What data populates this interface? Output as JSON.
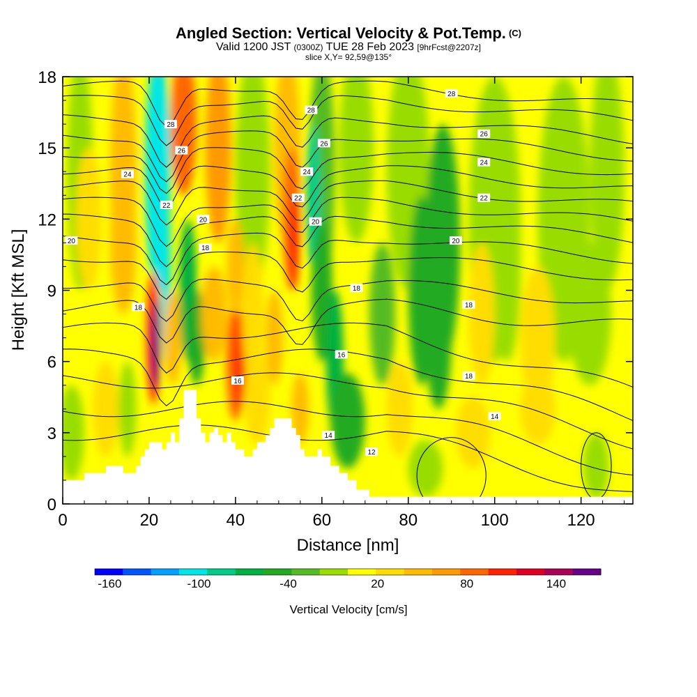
{
  "chart_data": {
    "type": "heatmap",
    "title": "Angled Section: Vertical Velocity & Pot.Temp.",
    "title_units": "(C)",
    "subtitle_main": "Valid 1200 JST",
    "subtitle_zulu": "(0300Z)",
    "subtitle_date": "TUE 28 Feb 2023",
    "subtitle_fcst": "[9hrFcst@2207z]",
    "subtitle2": "slice X,Y= 92,59@135°",
    "xlabel": "Distance [nm]",
    "ylabel": "Height [Kft MSL]",
    "xlim": [
      0,
      132
    ],
    "ylim": [
      0,
      18
    ],
    "x_ticks": [
      0,
      20,
      40,
      60,
      80,
      100,
      120
    ],
    "y_ticks": [
      0,
      3,
      6,
      9,
      12,
      15,
      18
    ],
    "colorbar_label": "Vertical Velocity [cm/s]",
    "colorbar_ticks": [
      -160,
      -100,
      -40,
      20,
      80,
      140
    ],
    "colorbar_range": [
      -170,
      170
    ],
    "colorbar_colors": [
      "#0000ff",
      "#0055ff",
      "#00a0ff",
      "#00e6e6",
      "#00cc88",
      "#00b040",
      "#22aa22",
      "#55bb22",
      "#99dd00",
      "#ffff00",
      "#ffdd00",
      "#ffbb00",
      "#ff9900",
      "#ff6600",
      "#ff2200",
      "#dd0022",
      "#aa0055",
      "#660088"
    ],
    "terrain": {
      "x": [
        0,
        4,
        5,
        9,
        10,
        13,
        14,
        16,
        17,
        18,
        19,
        20,
        21,
        22,
        23,
        24,
        25,
        26,
        27,
        28,
        29,
        31,
        32,
        33,
        34,
        35,
        36,
        37,
        38,
        39,
        40,
        42,
        43,
        44,
        45,
        46,
        47,
        48,
        49,
        50,
        52,
        53,
        54,
        55,
        56,
        58,
        59,
        60,
        62,
        64,
        66,
        67,
        68,
        70,
        71,
        72,
        132
      ],
      "y": [
        1.0,
        1.0,
        1.3,
        1.3,
        1.6,
        1.6,
        1.3,
        1.3,
        1.6,
        2.0,
        2.3,
        2.6,
        2.6,
        2.6,
        2.3,
        2.6,
        3.0,
        2.6,
        3.6,
        4.8,
        4.8,
        3.6,
        3.0,
        2.6,
        3.0,
        3.2,
        2.9,
        2.6,
        3.0,
        2.6,
        2.3,
        2.0,
        2.0,
        2.3,
        2.6,
        2.6,
        2.9,
        3.2,
        3.6,
        3.6,
        3.6,
        3.2,
        2.9,
        2.3,
        2.0,
        2.0,
        2.3,
        2.0,
        1.6,
        1.3,
        1.0,
        1.0,
        0.6,
        0.6,
        0.3,
        0.3,
        0.3
      ]
    },
    "pot_temp_labels": [
      {
        "text": "28",
        "x": 25.0,
        "y": 16.0
      },
      {
        "text": "26",
        "x": 27.5,
        "y": 14.9
      },
      {
        "text": "24",
        "x": 15.0,
        "y": 13.9
      },
      {
        "text": "22",
        "x": 24.0,
        "y": 12.6
      },
      {
        "text": "20",
        "x": 2.0,
        "y": 11.1
      },
      {
        "text": "20",
        "x": 32.5,
        "y": 12.0
      },
      {
        "text": "18",
        "x": 33.0,
        "y": 10.8
      },
      {
        "text": "18",
        "x": 17.5,
        "y": 8.3
      },
      {
        "text": "16",
        "x": 40.5,
        "y": 5.2
      },
      {
        "text": "28",
        "x": 57.5,
        "y": 16.6
      },
      {
        "text": "26",
        "x": 60.5,
        "y": 15.2
      },
      {
        "text": "24",
        "x": 56.5,
        "y": 14.0
      },
      {
        "text": "22",
        "x": 54.5,
        "y": 12.9
      },
      {
        "text": "20",
        "x": 58.5,
        "y": 11.9
      },
      {
        "text": "18",
        "x": 68.0,
        "y": 9.1
      },
      {
        "text": "16",
        "x": 64.5,
        "y": 6.3
      },
      {
        "text": "14",
        "x": 61.5,
        "y": 2.9
      },
      {
        "text": "12",
        "x": 71.5,
        "y": 2.2
      },
      {
        "text": "28",
        "x": 90.0,
        "y": 17.3
      },
      {
        "text": "26",
        "x": 97.5,
        "y": 15.6
      },
      {
        "text": "24",
        "x": 97.5,
        "y": 14.4
      },
      {
        "text": "22",
        "x": 97.5,
        "y": 12.9
      },
      {
        "text": "20",
        "x": 91.0,
        "y": 11.1
      },
      {
        "text": "18",
        "x": 94.0,
        "y": 8.4
      },
      {
        "text": "18",
        "x": 94.0,
        "y": 5.4
      },
      {
        "text": "14",
        "x": 100.0,
        "y": 3.7
      }
    ]
  }
}
